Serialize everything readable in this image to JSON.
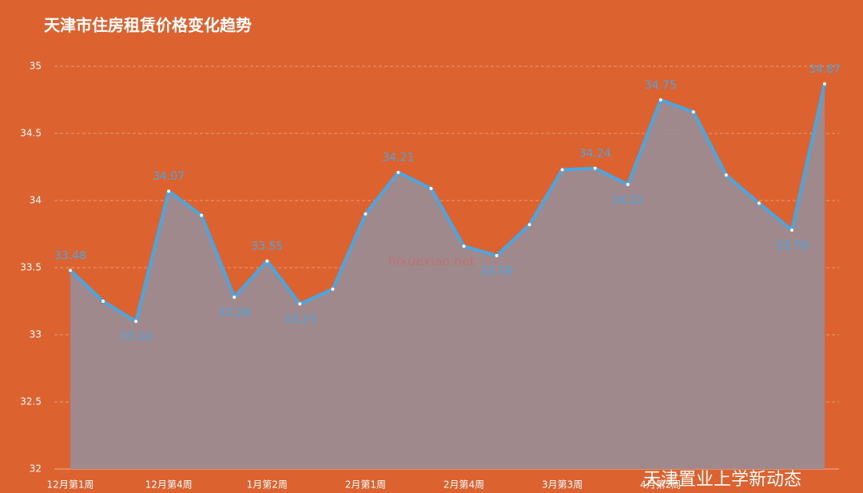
{
  "chart_data": {
    "type": "area-line",
    "title": "天津市住房租赁价格变化趋势",
    "categories": [
      "12月第1周",
      null,
      null,
      "12月第4周",
      null,
      null,
      "1月第2周",
      null,
      null,
      "2月第1周",
      null,
      null,
      "2月第4周",
      null,
      null,
      "3月第3周",
      null,
      null,
      "4月第2周",
      null,
      null,
      null,
      null,
      null
    ],
    "values": [
      33.48,
      33.25,
      33.1,
      34.07,
      33.89,
      33.28,
      33.55,
      33.23,
      33.34,
      33.9,
      34.21,
      34.09,
      33.66,
      33.59,
      33.82,
      34.23,
      34.24,
      34.12,
      34.75,
      34.66,
      34.19,
      33.98,
      33.78,
      34.87
    ],
    "value_labels": [
      "33.48",
      null,
      "33.10",
      "34.07",
      null,
      "33.28",
      "33.55",
      "33.23",
      null,
      null,
      "34.21",
      null,
      null,
      "33.59",
      null,
      null,
      "34.24",
      "34.12",
      "34.75",
      null,
      null,
      null,
      "33.78",
      "34.87"
    ],
    "color": "#4aa6e0",
    "area_color": "#9c8b92",
    "background": "#dc6230",
    "ylim": [
      32,
      35
    ],
    "yticks": [
      32,
      32.5,
      33,
      33.5,
      34,
      34.5,
      35
    ],
    "grid": true,
    "watermark": "天津置业上学新动态",
    "watermark2": "hixuexiao.net"
  }
}
